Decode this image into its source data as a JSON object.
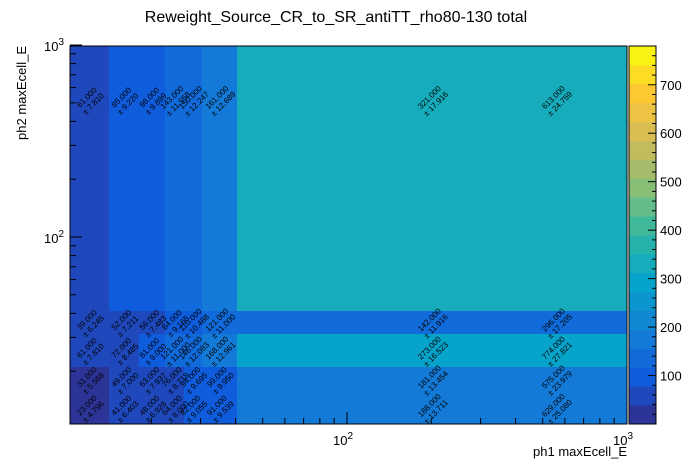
{
  "chart_data": {
    "type": "heatmap",
    "title": "Reweight_Source_CR_to_SR_antiTT_rho80-130 total",
    "xlabel": "ph1 maxEcell_E",
    "ylabel": "ph2 maxEcell_E",
    "x_scale": "log",
    "y_scale": "log",
    "x_tick_labels": [
      {
        "base": "10",
        "exp": "2",
        "value": 100
      },
      {
        "base": "10",
        "exp": "3",
        "value": 1000
      }
    ],
    "y_tick_labels": [
      {
        "base": "10",
        "exp": "2",
        "value": 100
      },
      {
        "base": "10",
        "exp": "3",
        "value": 1000
      }
    ],
    "z_range": [
      0,
      780
    ],
    "z_tick_labels": [
      "100",
      "200",
      "300",
      "400",
      "500",
      "600",
      "700"
    ],
    "cells": [
      {
        "x_bin": 0,
        "y_bin": 5,
        "value": 61,
        "value_label": "61.000",
        "error_label": "± 7.810"
      },
      {
        "x_bin": 1,
        "y_bin": 5,
        "value": 85,
        "value_label": "85.000",
        "error_label": "± 9.220"
      },
      {
        "x_bin": 2,
        "y_bin": 5,
        "value": 98,
        "value_label": "98.000",
        "error_label": "± 9.899"
      },
      {
        "x_bin": 3,
        "y_bin": 5,
        "value": 143,
        "value_label": "143.000",
        "error_label": "± 11.958"
      },
      {
        "x_bin": 4,
        "y_bin": 5,
        "value": 150,
        "value_label": "150.000",
        "error_label": "± 12.247"
      },
      {
        "x_bin": 5,
        "y_bin": 5,
        "value": 161,
        "value_label": "161.000",
        "error_label": "± 12.689"
      },
      {
        "x_bin": 6,
        "y_bin": 5,
        "value": 321,
        "value_label": "321.000",
        "error_label": "± 17.916"
      },
      {
        "x_bin": 7,
        "y_bin": 5,
        "value": 613,
        "value_label": "613.000",
        "error_label": "± 24.759"
      },
      {
        "x_bin": 0,
        "y_bin": 4,
        "value": 39,
        "value_label": "39.000",
        "error_label": "± 6.245"
      },
      {
        "x_bin": 1,
        "y_bin": 4,
        "value": 52,
        "value_label": "52.000",
        "error_label": "± 7.211"
      },
      {
        "x_bin": 2,
        "y_bin": 4,
        "value": 56,
        "value_label": "56.000",
        "error_label": "± 7.483"
      },
      {
        "x_bin": 3,
        "y_bin": 4,
        "value": 84,
        "value_label": "84.000",
        "error_label": "± 9.165"
      },
      {
        "x_bin": 4,
        "y_bin": 4,
        "value": 110,
        "value_label": "110.000",
        "error_label": "± 10.488"
      },
      {
        "x_bin": 5,
        "y_bin": 4,
        "value": 121,
        "value_label": "121.000",
        "error_label": "± 11.000"
      },
      {
        "x_bin": 6,
        "y_bin": 4,
        "value": 142,
        "value_label": "142.000",
        "error_label": "± 11.916"
      },
      {
        "x_bin": 7,
        "y_bin": 4,
        "value": 296,
        "value_label": "296.000",
        "error_label": "± 17.205"
      },
      {
        "x_bin": 0,
        "y_bin": 3,
        "value": 61,
        "value_label": "61.000",
        "error_label": "± 7.810"
      },
      {
        "x_bin": 1,
        "y_bin": 3,
        "value": 72,
        "value_label": "72.000",
        "error_label": "± 8.485"
      },
      {
        "x_bin": 2,
        "y_bin": 3,
        "value": 81,
        "value_label": "81.000",
        "error_label": "± 9.000"
      },
      {
        "x_bin": 3,
        "y_bin": 3,
        "value": 121,
        "value_label": "121.000",
        "error_label": "± 11.000"
      },
      {
        "x_bin": 4,
        "y_bin": 3,
        "value": 146,
        "value_label": "146.000",
        "error_label": "± 12.083"
      },
      {
        "x_bin": 5,
        "y_bin": 3,
        "value": 168,
        "value_label": "168.000",
        "error_label": "± 12.961"
      },
      {
        "x_bin": 6,
        "y_bin": 3,
        "value": 273,
        "value_label": "273.000",
        "error_label": "± 16.523"
      },
      {
        "x_bin": 7,
        "y_bin": 3,
        "value": 774,
        "value_label": "774.000",
        "error_label": "± 27.821"
      },
      {
        "x_bin": 0,
        "y_bin": 2,
        "value": 31,
        "value_label": "31.000",
        "error_label": "± 5.568"
      },
      {
        "x_bin": 1,
        "y_bin": 2,
        "value": 49,
        "value_label": "49.000",
        "error_label": "± 7.000"
      },
      {
        "x_bin": 2,
        "y_bin": 2,
        "value": 63,
        "value_label": "63.000",
        "error_label": "± 7.937"
      },
      {
        "x_bin": 3,
        "y_bin": 2,
        "value": 76,
        "value_label": "76.000",
        "error_label": "± 8.718"
      },
      {
        "x_bin": 4,
        "y_bin": 2,
        "value": 94,
        "value_label": "94.000",
        "error_label": "± 9.695"
      },
      {
        "x_bin": 5,
        "y_bin": 2,
        "value": 99,
        "value_label": "99.000",
        "error_label": "± 9.950"
      },
      {
        "x_bin": 6,
        "y_bin": 2,
        "value": 181,
        "value_label": "181.000",
        "error_label": "± 13.454"
      },
      {
        "x_bin": 7,
        "y_bin": 2,
        "value": 575,
        "value_label": "575.000",
        "error_label": "± 23.979"
      },
      {
        "x_bin": 0,
        "y_bin": 1,
        "value": 23,
        "value_label": "23.000",
        "error_label": "± 4.796"
      },
      {
        "x_bin": 1,
        "y_bin": 1,
        "value": 41,
        "value_label": "41.000",
        "error_label": "± 6.403"
      },
      {
        "x_bin": 2,
        "y_bin": 1,
        "value": 48,
        "value_label": "48.000",
        "error_label": "± 6.928"
      },
      {
        "x_bin": 3,
        "y_bin": 1,
        "value": 64,
        "value_label": "64.000",
        "error_label": "± 8.000"
      },
      {
        "x_bin": 4,
        "y_bin": 1,
        "value": 82,
        "value_label": "82.000",
        "error_label": "± 9.055"
      },
      {
        "x_bin": 5,
        "y_bin": 1,
        "value": 91,
        "value_label": "91.000",
        "error_label": "± 9.539"
      },
      {
        "x_bin": 6,
        "y_bin": 1,
        "value": 188,
        "value_label": "188.000",
        "error_label": "± 13.711"
      },
      {
        "x_bin": 7,
        "y_bin": 1,
        "value": 629,
        "value_label": "629.000",
        "error_label": "± 25.080"
      }
    ]
  }
}
